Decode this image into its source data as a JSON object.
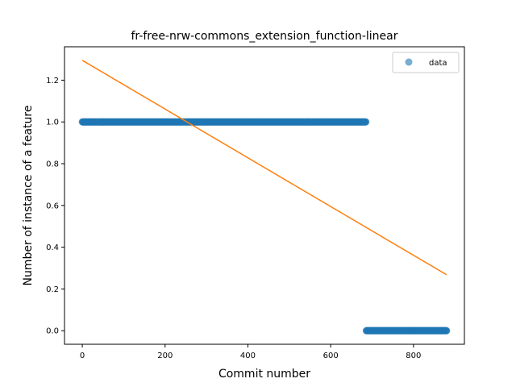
{
  "chart_data": {
    "type": "scatter",
    "title": "fr-free-nrw-commons_extension_function-linear",
    "xlabel": "Commit number",
    "ylabel": "Number of instance of a feature",
    "xlim": [
      -43,
      923
    ],
    "ylim": [
      -0.065,
      1.36
    ],
    "xticks": [
      0,
      200,
      400,
      600,
      800
    ],
    "yticks": [
      0.0,
      0.2,
      0.4,
      0.6,
      0.8,
      1.0,
      1.2
    ],
    "xtick_labels": [
      "0",
      "200",
      "400",
      "600",
      "800"
    ],
    "ytick_labels": [
      "0.0",
      "0.2",
      "0.4",
      "0.6",
      "0.8",
      "1.0",
      "1.2"
    ],
    "grid": false,
    "legend_position": "top-right",
    "series": [
      {
        "name": "data",
        "kind": "scatter",
        "color": "#1f77b4",
        "segments": [
          {
            "x_start": 0,
            "x_end": 685,
            "y": 1.0
          },
          {
            "x_start": 686,
            "x_end": 880,
            "y": 0.0
          }
        ]
      },
      {
        "kind": "line",
        "color": "#ff7f0e",
        "x": [
          0,
          880
        ],
        "y": [
          1.295,
          0.268
        ]
      }
    ]
  }
}
